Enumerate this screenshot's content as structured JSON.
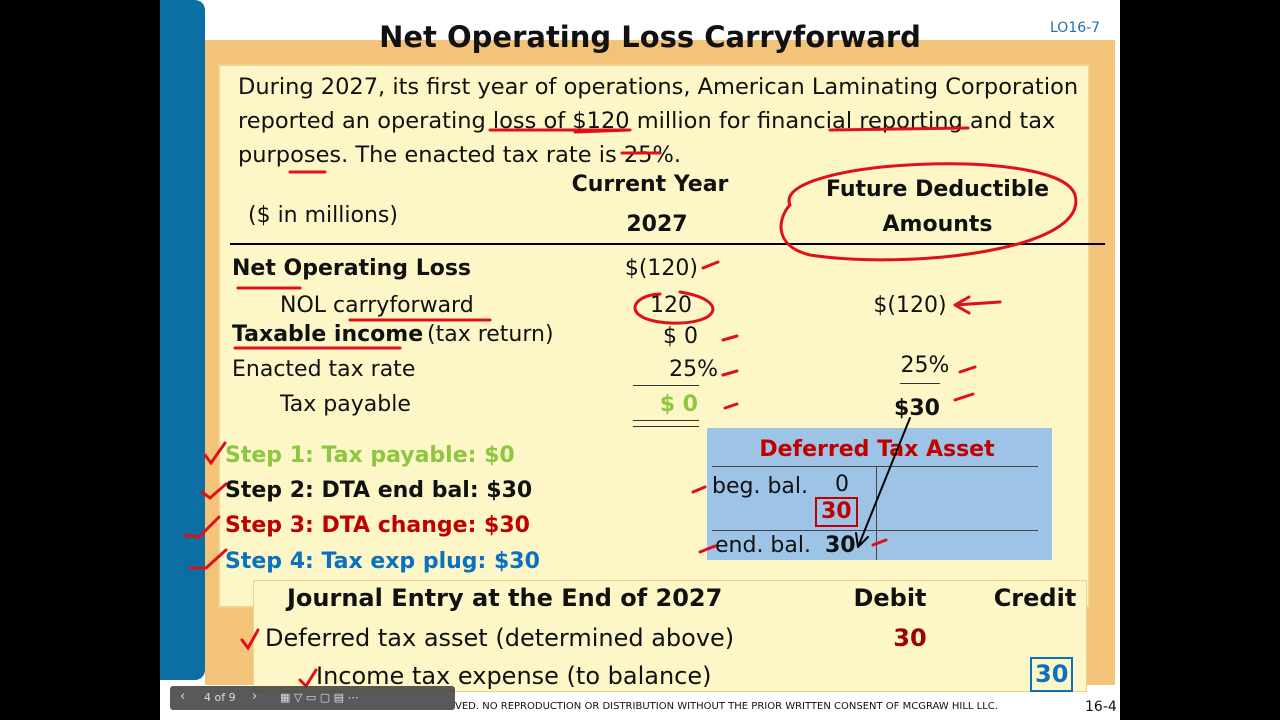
{
  "header": {
    "title": "Net Operating Loss Carryforward",
    "code": "LO16-7"
  },
  "intro": [
    "During 2027, its first year of operations, American Laminating Corporation",
    "reported an operating loss of $120 million for financial reporting and tax",
    "purposes. The enacted tax rate is 25%."
  ],
  "table": {
    "units": "($ in millions)",
    "current_header": "Current Year",
    "current_year": "2027",
    "future_header": "Future Deductible Amounts",
    "rows": [
      {
        "label": "Net Operating Loss",
        "current": "$(120)"
      },
      {
        "label": "NOL carryforward",
        "current": "120",
        "future": "$(120)"
      },
      {
        "label": "Taxable income",
        "note": "(tax return)",
        "current": "$ 0"
      },
      {
        "label": "Enacted tax rate",
        "current": "25%",
        "future": "25%"
      },
      {
        "label": "Tax payable",
        "current": "$ 0",
        "future": "$30"
      }
    ]
  },
  "steps": [
    "Step 1: Tax payable: $0",
    "Step 2: DTA end bal: $30",
    "Step 3: DTA change: $30",
    "Step 4: Tax exp plug: $30"
  ],
  "t_account": {
    "title": "Deferred Tax Asset",
    "beg_label": "beg. bal.",
    "beg_value": "0",
    "change": "30",
    "end_label": "end. bal.",
    "end_value": "30"
  },
  "journal": {
    "title": "Journal Entry at the End of 2027",
    "debit_header": "Debit",
    "credit_header": "Credit",
    "rows": [
      {
        "account": "Deferred tax asset (determined above)",
        "debit": "30"
      },
      {
        "account": "Income tax expense (to balance)",
        "credit": "30"
      }
    ]
  },
  "footer": {
    "notice": "VED. NO REPRODUCTION OR DISTRIBUTION WITHOUT THE PRIOR WRITTEN CONSENT OF MCGRAW HILL LLC.",
    "page": "16-4"
  },
  "player": {
    "position": "4 of 9"
  }
}
